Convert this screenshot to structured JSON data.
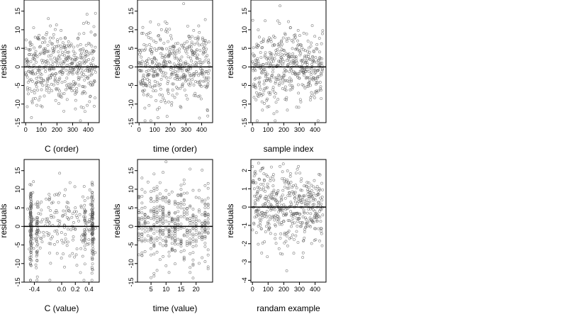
{
  "chart_data": [
    {
      "type": "scatter",
      "xlabel": "C (order)",
      "ylabel": "residuals",
      "xlim": [
        -10,
        470
      ],
      "ylim": [
        -15,
        18
      ],
      "xticks": [
        0,
        100,
        200,
        300,
        400
      ],
      "xtick_labels": [
        "0",
        "100",
        "200",
        "300",
        "400"
      ],
      "yticks": [
        -15,
        -10,
        -5,
        0,
        5,
        10,
        15
      ],
      "ytick_labels": [
        "-15",
        "-10",
        "-5",
        "0",
        "5",
        "10",
        "15"
      ],
      "reference_line_y": 0,
      "n": 450,
      "pattern": "order",
      "x": [],
      "y": []
    },
    {
      "type": "scatter",
      "xlabel": "time (order)",
      "ylabel": "residuals",
      "xlim": [
        -10,
        470
      ],
      "ylim": [
        -15,
        18
      ],
      "xticks": [
        0,
        100,
        200,
        300,
        400
      ],
      "xtick_labels": [
        "0",
        "100",
        "200",
        "300",
        "400"
      ],
      "yticks": [
        -15,
        -10,
        -5,
        0,
        5,
        10,
        15
      ],
      "ytick_labels": [
        "-15",
        "-10",
        "-5",
        "0",
        "5",
        "10",
        "15"
      ],
      "reference_line_y": 0,
      "n": 450,
      "pattern": "order",
      "x": [],
      "y": []
    },
    {
      "type": "scatter",
      "xlabel": "sample index",
      "ylabel": "residuals",
      "xlim": [
        -10,
        470
      ],
      "ylim": [
        -15,
        18
      ],
      "xticks": [
        0,
        100,
        200,
        300,
        400
      ],
      "xtick_labels": [
        "0",
        "100",
        "200",
        "300",
        "400"
      ],
      "yticks": [
        -15,
        -10,
        -5,
        0,
        5,
        10,
        15
      ],
      "ytick_labels": [
        "-15",
        "-10",
        "-5",
        "0",
        "5",
        "10",
        "15"
      ],
      "reference_line_y": 0,
      "n": 450,
      "pattern": "order",
      "x": [],
      "y": []
    },
    {
      "type": "scatter",
      "xlabel": "C (value)",
      "ylabel": "residuals",
      "xlim": [
        -0.55,
        0.55
      ],
      "ylim": [
        -15,
        18
      ],
      "xticks": [
        -0.4,
        0.0,
        0.2,
        0.4
      ],
      "xtick_labels": [
        "-0.4",
        "0.0",
        "0.2",
        "0.4"
      ],
      "yticks": [
        -15,
        -10,
        -5,
        0,
        5,
        10,
        15
      ],
      "ytick_labels": [
        "-15",
        "-10",
        "-5",
        "0",
        "5",
        "10",
        "15"
      ],
      "reference_line_y": 0,
      "n": 450,
      "pattern": "c-value",
      "x": [],
      "y": []
    },
    {
      "type": "scatter",
      "xlabel": "time (value)",
      "ylabel": "residuals",
      "xlim": [
        0.5,
        25.5
      ],
      "ylim": [
        -15,
        18
      ],
      "xticks": [
        5,
        10,
        15,
        20
      ],
      "xtick_labels": [
        "5",
        "10",
        "15",
        "20"
      ],
      "yticks": [
        -15,
        -10,
        -5,
        0,
        5,
        10,
        15
      ],
      "ytick_labels": [
        "-15",
        "-10",
        "-5",
        "0",
        "5",
        "10",
        "15"
      ],
      "reference_line_y": 0,
      "n": 450,
      "pattern": "time-value",
      "x": [],
      "y": []
    },
    {
      "type": "scatter",
      "xlabel": "randam example",
      "ylabel": "residuals",
      "xlim": [
        -10,
        470
      ],
      "ylim": [
        -4.1,
        2.6
      ],
      "xticks": [
        0,
        100,
        200,
        300,
        400
      ],
      "xtick_labels": [
        "0",
        "100",
        "200",
        "300",
        "400"
      ],
      "yticks": [
        -4,
        -3,
        -2,
        -1,
        0,
        1,
        2
      ],
      "ytick_labels": [
        "-4",
        "-3",
        "-2",
        "-1",
        "0",
        "1",
        "2"
      ],
      "reference_line_y": 0,
      "n": 450,
      "pattern": "random",
      "x": [],
      "y": []
    }
  ],
  "colors": {
    "points": "#555555",
    "zero_line": "#000000",
    "frame": "#000000"
  }
}
